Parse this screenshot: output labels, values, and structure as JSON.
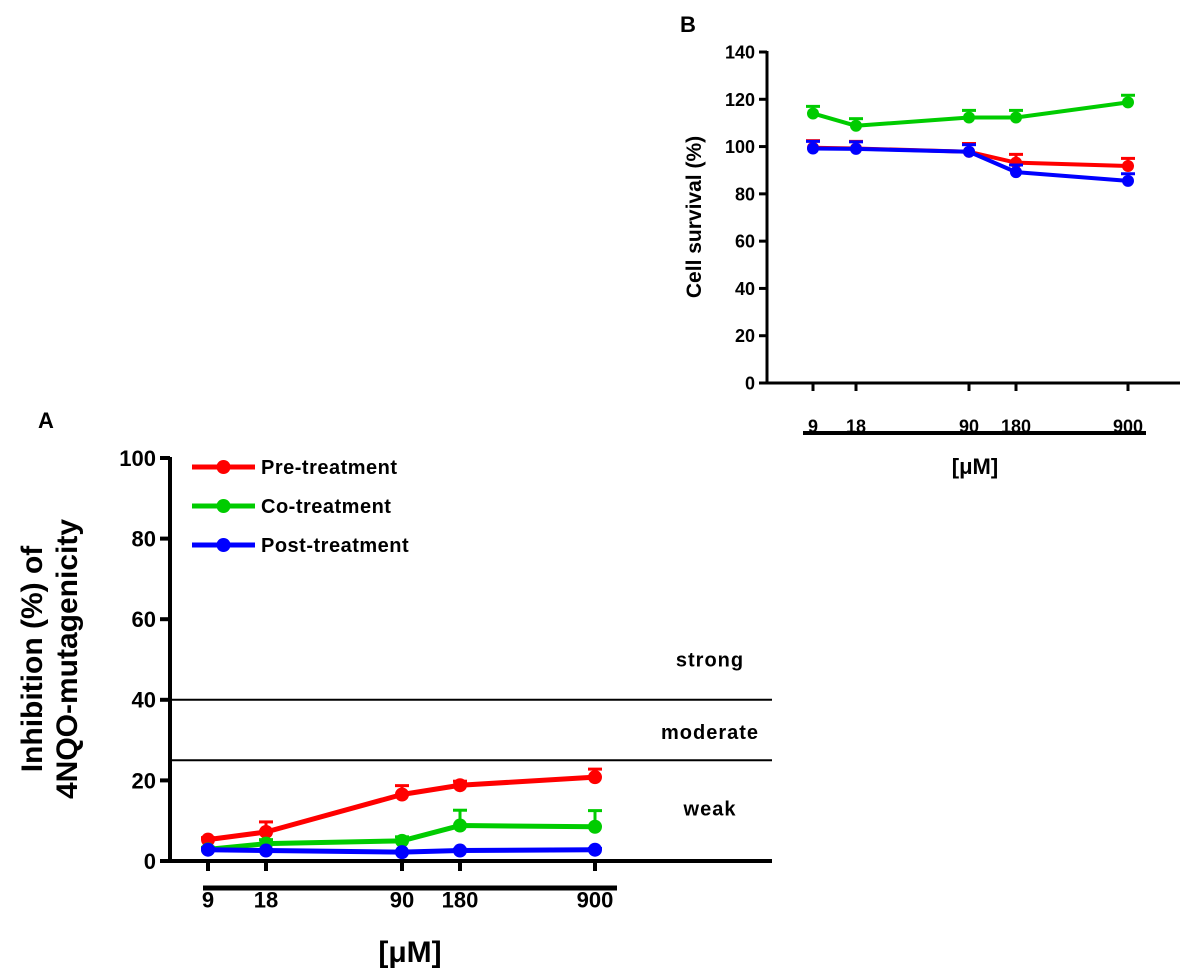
{
  "chart_data": [
    {
      "panel_label": "A",
      "type": "line",
      "x": [
        9,
        18,
        90,
        180,
        900
      ],
      "x_tick_labels": [
        "9",
        "18",
        "90",
        "180",
        "900"
      ],
      "x_scale": "log",
      "xlabel": "[μM]",
      "ylabel_lines": [
        "Inhibition (%) of",
        "4NQO-mutagenicity"
      ],
      "ylim": [
        0,
        100
      ],
      "yticks": [
        0,
        20,
        40,
        60,
        80,
        100
      ],
      "legend_position": "top-left",
      "series": [
        {
          "name": "Pre-treatment",
          "color": "#ff0000",
          "values": [
            5.3,
            7.2,
            16.5,
            18.8,
            20.8
          ],
          "errors": [
            0.5,
            2.5,
            2.2,
            1.0,
            2.0
          ]
        },
        {
          "name": "Co-treatment",
          "color": "#00cc00",
          "values": [
            2.9,
            4.3,
            5.0,
            8.8,
            8.5
          ],
          "errors": [
            0.5,
            1.0,
            1.0,
            3.8,
            4.0
          ]
        },
        {
          "name": "Post-treatment",
          "color": "#0000ff",
          "values": [
            2.8,
            2.6,
            2.2,
            2.6,
            2.8
          ],
          "errors": [
            0.3,
            0.3,
            0.3,
            0.3,
            0.3
          ]
        }
      ],
      "thresholds": [
        {
          "y": 40
        },
        {
          "y": 25
        }
      ],
      "region_labels": [
        {
          "text": "strong",
          "y": 50
        },
        {
          "text": "moderate",
          "y": 32
        },
        {
          "text": "weak",
          "y": 13
        }
      ]
    },
    {
      "panel_label": "B",
      "type": "line",
      "x": [
        9,
        18,
        90,
        180,
        900
      ],
      "x_tick_labels": [
        "9",
        "18",
        "90",
        "180",
        "900"
      ],
      "x_scale": "log",
      "xlabel": "[μM]",
      "ylabel": "Cell survival (%)",
      "ylim": [
        0,
        140
      ],
      "yticks": [
        0,
        20,
        40,
        60,
        80,
        100,
        120,
        140
      ],
      "series": [
        {
          "color": "#ff0000",
          "values": [
            99.5,
            99.2,
            97.8,
            93.2,
            91.8
          ],
          "errors": [
            3.0,
            3.0,
            3.5,
            3.5,
            3.2
          ]
        },
        {
          "color": "#00cc00",
          "values": [
            114.0,
            108.8,
            112.3,
            112.3,
            118.7
          ],
          "errors": [
            3.0,
            3.0,
            3.0,
            3.0,
            3.0
          ]
        },
        {
          "color": "#0000ff",
          "values": [
            99.2,
            99.0,
            97.8,
            89.2,
            85.5
          ],
          "errors": [
            3.0,
            3.0,
            3.0,
            3.0,
            3.0
          ]
        }
      ]
    }
  ]
}
